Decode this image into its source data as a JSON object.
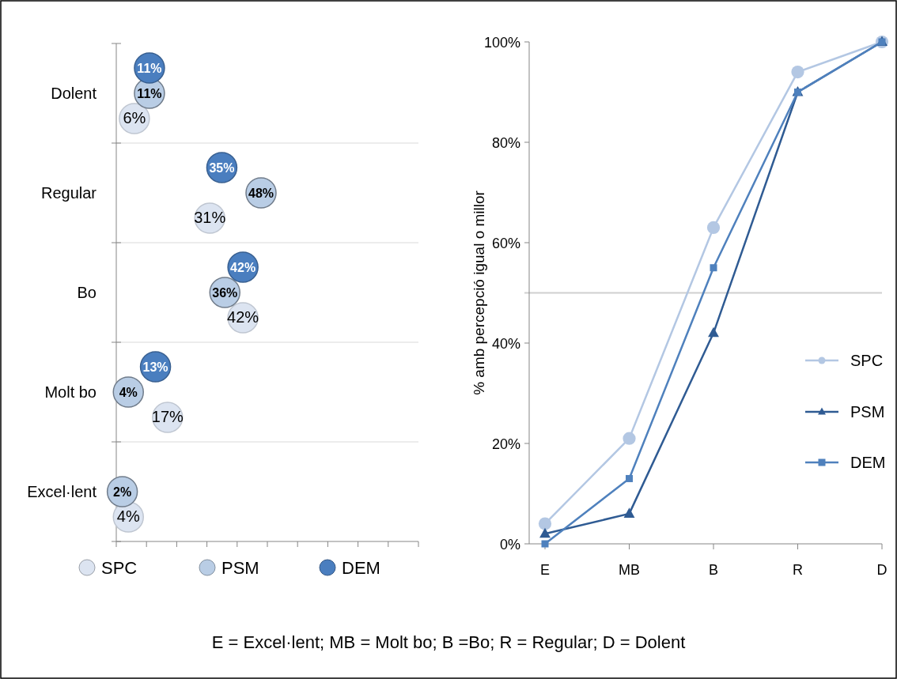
{
  "chart_data": [
    {
      "type": "scatter",
      "orientation": "horizontal",
      "categories": [
        "Dolent",
        "Regular",
        "Bo",
        "Molt bo",
        "Excel·lent"
      ],
      "grid": "y",
      "legend": "bottom",
      "marker": "circle",
      "series": [
        {
          "name": "SPC",
          "color": "#dce4f1",
          "values": [
            6,
            31,
            42,
            17,
            4
          ],
          "value_labels": [
            "6%",
            "31%",
            "42%",
            "17%",
            "4%"
          ]
        },
        {
          "name": "PSM",
          "color": "#b9cde5",
          "values": [
            11,
            48,
            36,
            4,
            2
          ],
          "value_labels": [
            "11%",
            "48%",
            "36%",
            "4%",
            "2%"
          ]
        },
        {
          "name": "DEM",
          "color": "#4a7ebf",
          "values": [
            11,
            35,
            42,
            13,
            null
          ],
          "value_labels": [
            "11%",
            "35%",
            "42%",
            "13%",
            null
          ]
        }
      ]
    },
    {
      "type": "line",
      "categories": [
        "E",
        "MB",
        "B",
        "R",
        "D"
      ],
      "ylabel": "% amb percepció igual o millor",
      "ylim": [
        0,
        100
      ],
      "yticks": [
        {
          "value": 0,
          "label": "0%"
        },
        {
          "value": 20,
          "label": "20%"
        },
        {
          "value": 40,
          "label": "40%"
        },
        {
          "value": 60,
          "label": "60%"
        },
        {
          "value": 80,
          "label": "80%"
        },
        {
          "value": 100,
          "label": "100%"
        }
      ],
      "legend": "right",
      "ref_lines": [
        {
          "axis": "y",
          "value": 50,
          "color": "#d0d0d0"
        }
      ],
      "annotations": [
        "E = Excel·lent; MB = Molt bo; B =Bo; R = Regular; D = Dolent"
      ],
      "series": [
        {
          "name": "SPC",
          "color": "#b3c7e3",
          "marker": "circle",
          "values": [
            4,
            21,
            63,
            94,
            100
          ]
        },
        {
          "name": "PSM",
          "color": "#2f5b93",
          "marker": "triangle",
          "values": [
            2,
            6,
            42,
            90,
            100
          ]
        },
        {
          "name": "DEM",
          "color": "#4f81bd",
          "marker": "square",
          "values": [
            0,
            13,
            55,
            90,
            100
          ]
        }
      ]
    }
  ]
}
